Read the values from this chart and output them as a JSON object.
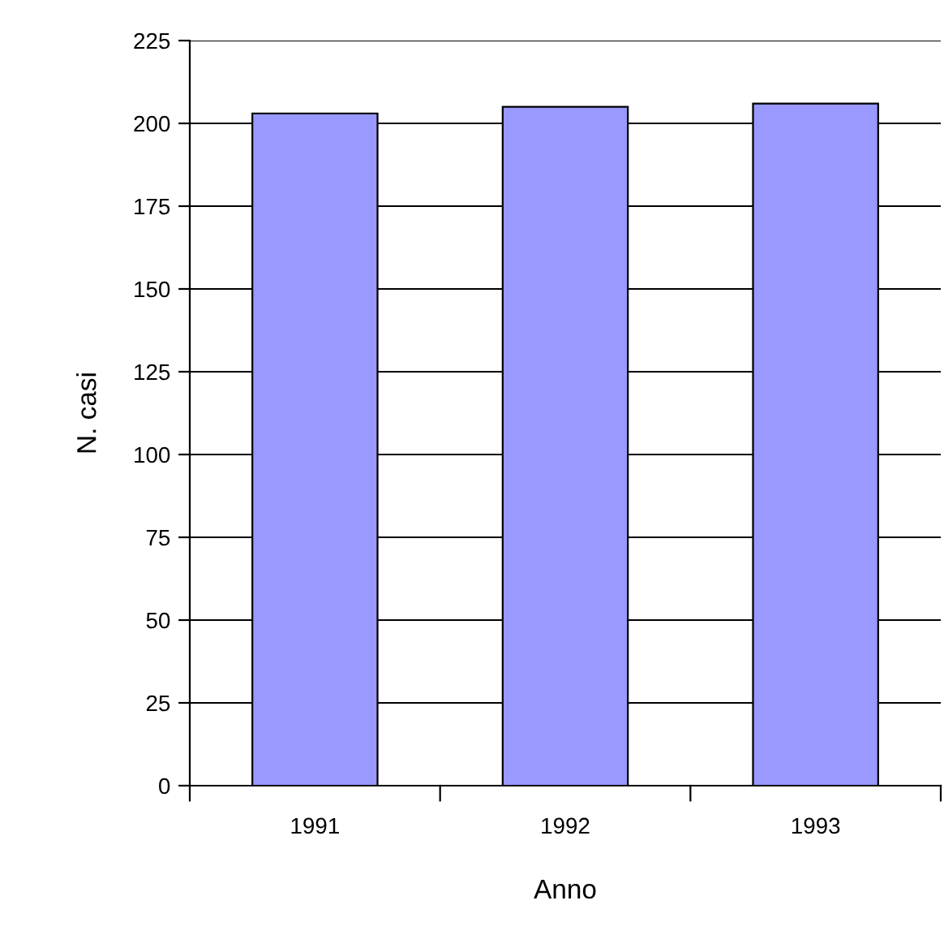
{
  "chart_data": {
    "type": "bar",
    "xlabel": "Anno",
    "ylabel": "N. casi",
    "categories": [
      "1991",
      "1992",
      "1993"
    ],
    "values": [
      203,
      205,
      206
    ],
    "color": "#9999ff",
    "ylim": [
      0,
      225
    ],
    "yticks": [
      0,
      25,
      50,
      75,
      100,
      125,
      150,
      175,
      200,
      225
    ],
    "grid": "y",
    "legend": false
  }
}
